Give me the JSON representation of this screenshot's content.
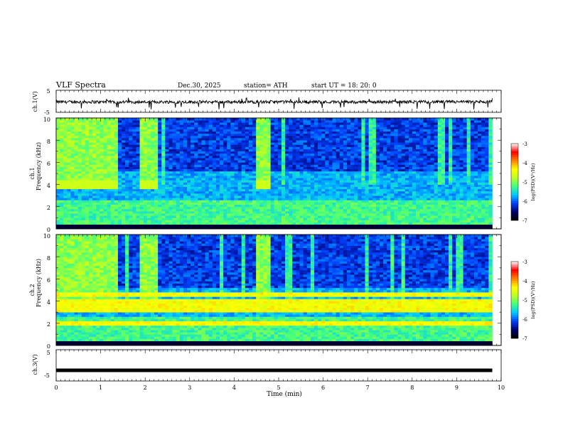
{
  "header": {
    "title": "VLF  Spectra",
    "date": "Dec.30, 2025",
    "station": "station= ATH",
    "start_ut": "start  UT  =    18: 20: 0"
  },
  "colors": {
    "background": "#ffffff",
    "axis": "#000000",
    "trace": "#000000",
    "spectrum_low": "#000080",
    "spectrum_mid": "#00c8ff",
    "spectrum_high": "#c0ff40",
    "spectrum_peak": "#ff0000"
  },
  "chart_data": [
    {
      "type": "line",
      "id": "ch1",
      "ylabel": "ch.1(V)",
      "ylim": [
        -5,
        5
      ],
      "yticks": [
        "5",
        "-5"
      ],
      "xlim": [
        0,
        10
      ],
      "series_description_value": "noise trace around -0.5 V with occasional spikes to about -3 V"
    },
    {
      "type": "heatmap",
      "id": "ch1_spec",
      "channel_label": "ch.1",
      "ylabel": "Frequency  (kHz)",
      "ylim": [
        0,
        10
      ],
      "yticks": [
        "0",
        "2",
        "4",
        "6",
        "8",
        "10"
      ],
      "xlim": [
        0,
        9.8
      ],
      "zlabel": "log(PSD)(V²/Hz)",
      "zlim": [
        -7,
        -3
      ],
      "zticks": [
        "-3",
        "-4",
        "-5",
        "-6",
        "-7"
      ],
      "colormap": [
        "#000000",
        "#00006e",
        "#0040ff",
        "#00c8ff",
        "#40ff80",
        "#c0ff20",
        "#ffff00",
        "#ff8000",
        "#ff0000",
        "#ffffff"
      ],
      "bright_intervals_min": [
        [
          0,
          1.35
        ],
        [
          1.9,
          2.25
        ],
        [
          4.5,
          4.8
        ]
      ],
      "band_4khz_level": -4.6
    },
    {
      "type": "heatmap",
      "id": "ch2_spec",
      "channel_label": "ch.2",
      "ylabel": "Frequency  (kHz)",
      "ylim": [
        0,
        10
      ],
      "yticks": [
        "0",
        "2",
        "4",
        "6",
        "8",
        "10"
      ],
      "xlim": [
        0,
        9.8
      ],
      "zlabel": "log(PSD)(V²/Hz)",
      "zlim": [
        -7,
        -3
      ],
      "zticks": [
        "-3",
        "-4",
        "-5",
        "-6",
        "-7"
      ],
      "colormap": [
        "#000000",
        "#00006e",
        "#0040ff",
        "#00c8ff",
        "#40ff80",
        "#c0ff20",
        "#ffff00",
        "#ff8000",
        "#ff0000",
        "#ffffff"
      ],
      "bright_intervals_min": [
        [
          0,
          1.35
        ],
        [
          1.9,
          2.25
        ],
        [
          4.5,
          4.8
        ]
      ],
      "band_lines_khz": [
        1.9,
        2.1,
        3.2,
        3.6,
        4.0,
        4.6
      ]
    },
    {
      "type": "line",
      "id": "ch3",
      "ylabel": "ch.3(V)",
      "ylim": [
        -5,
        5
      ],
      "yticks": [
        "5",
        "-5"
      ],
      "xlim": [
        0,
        10
      ],
      "constant_value_v": -1.6
    }
  ],
  "x_axis": {
    "label": "Time  (min)",
    "ticks": [
      "0",
      "1",
      "2",
      "3",
      "4",
      "5",
      "6",
      "7",
      "8",
      "9",
      "10"
    ]
  }
}
